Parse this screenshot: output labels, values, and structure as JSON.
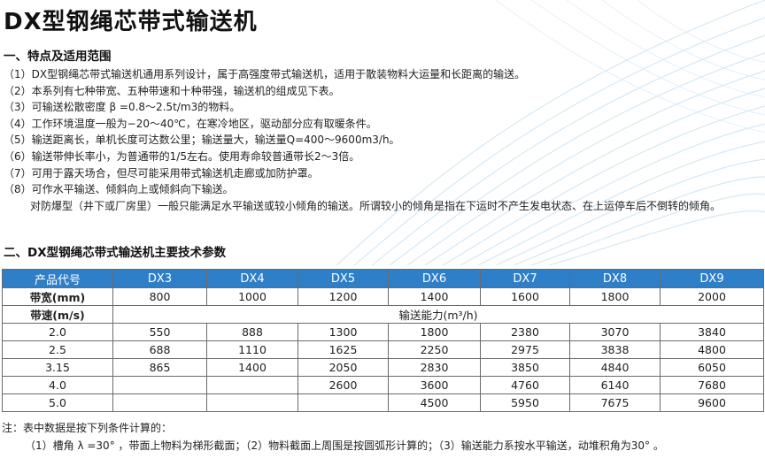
{
  "title": "DX型钢绳芯带式输送机",
  "section1": {
    "heading": "一、特点及适用范围",
    "items": [
      "（1）DX型钢绳芯带式输送机通用系列设计，属于高强度带式输送机，适用于散装物料大运量和长距离的输送。",
      "（2）本系列有七种带宽、五种带速和十种带强，输送机的组成见下表。",
      "（3）可输送松散密度 β =0.8～2.5t/m3的物料。",
      "（4）工作环境温度一般为−20～40℃，在寒冷地区，驱动部分应有取暖条件。",
      "（5）输送距离长，单机长度可达数公里；输送量大，输送量Q=400～9600m3/h。",
      "（6）输送带伸长率小，为普通带的1/5左右。使用寿命较普通带长2～3倍。",
      "（7）可用于露天场合，但尽可能采用带式输送机走廊或加防护罩。",
      "（8）可作水平输送、倾斜向上或倾斜向下输送。"
    ],
    "note": "对防爆型（井下或厂房里）一般只能满足水平输送或较小倾角的输送。所谓较小的倾角是指在下运时不产生发电状态、在上运停车后不倒转的倾角。"
  },
  "section2": {
    "heading": "二、DX型钢绳芯带式输送机主要技术参数"
  },
  "table": {
    "header": [
      "产品代号",
      "DX3",
      "DX4",
      "DX5",
      "DX6",
      "DX7",
      "DX8",
      "DX9"
    ],
    "width_row": [
      "带宽(mm)",
      "800",
      "1000",
      "1200",
      "1400",
      "1600",
      "1800",
      "2000"
    ],
    "speed_label": "带速(m/s)",
    "capacity_label": "输送能力(m³/h)",
    "rows": [
      [
        "2.0",
        "550",
        "888",
        "1300",
        "1800",
        "2380",
        "3070",
        "3840"
      ],
      [
        "2.5",
        "688",
        "1110",
        "1625",
        "2250",
        "2975",
        "3838",
        "4800"
      ],
      [
        "3.15",
        "865",
        "1400",
        "2050",
        "2830",
        "3850",
        "4840",
        "6050"
      ],
      [
        "4.0",
        "",
        "",
        "2600",
        "3600",
        "4760",
        "6140",
        "7680"
      ],
      [
        "5.0",
        "",
        "",
        "",
        "4500",
        "5950",
        "7675",
        "9600"
      ]
    ]
  },
  "footnotes": {
    "intro": "注：表中数据是按下列条件计算的：",
    "conditions": "（1）槽角 λ =30° ，带面上物料为梯形截面；（2）物料截面上周围是按圆弧形计算的；（3）输送能力系按水平输送，动堆积角为30° 。"
  }
}
